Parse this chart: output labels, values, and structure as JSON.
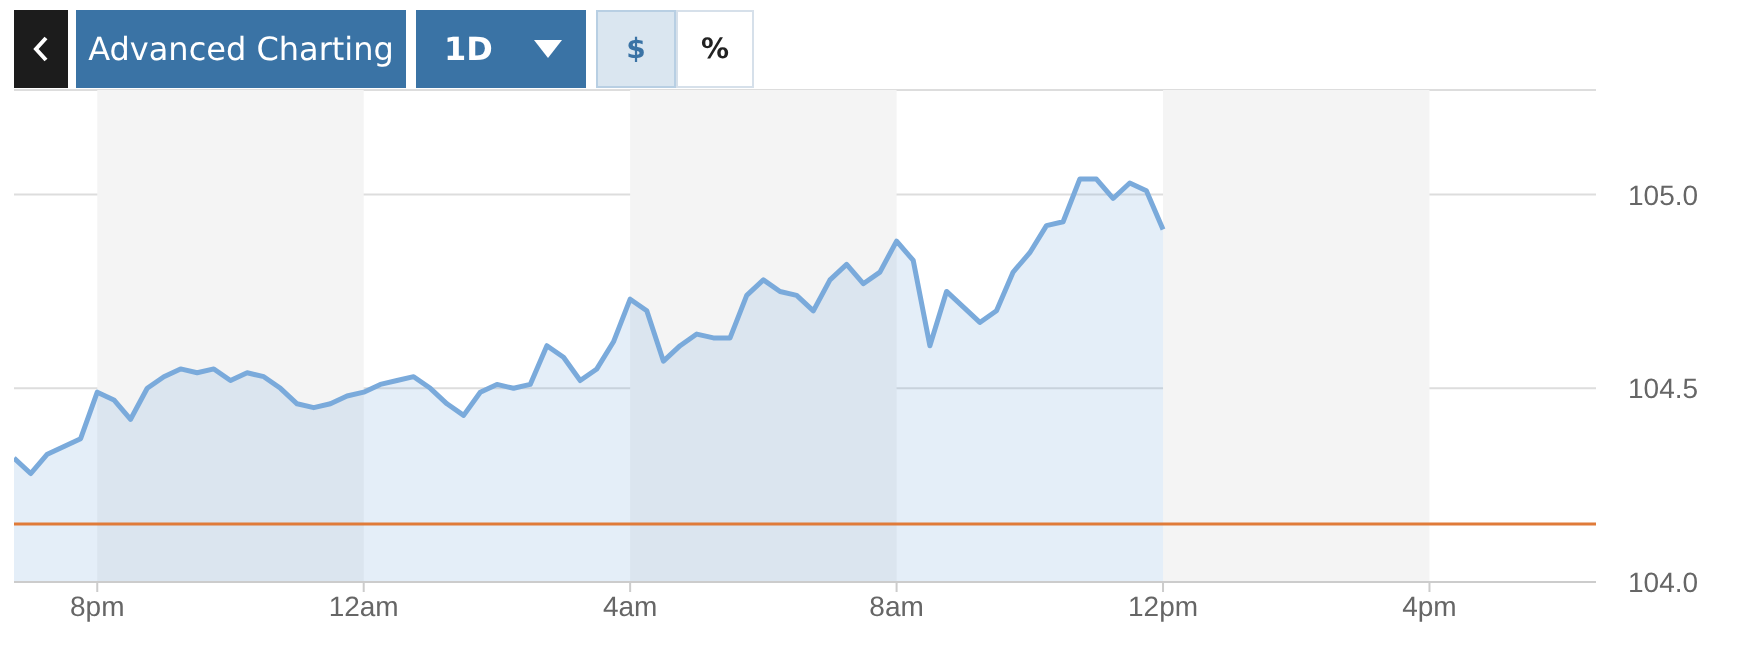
{
  "chart_data": {
    "type": "area",
    "annotations": [
      "Advanced Charting",
      "1D",
      "$",
      "%"
    ],
    "categories": [
      null,
      null,
      null,
      null,
      null,
      "8pm",
      null,
      null,
      null,
      null,
      null,
      null,
      null,
      null,
      null,
      null,
      null,
      null,
      null,
      null,
      null,
      "12am",
      null,
      null,
      null,
      null,
      null,
      null,
      null,
      null,
      null,
      null,
      null,
      null,
      null,
      null,
      null,
      "4am",
      null,
      null,
      null,
      null,
      null,
      null,
      null,
      null,
      null,
      null,
      null,
      null,
      null,
      null,
      null,
      "8am",
      null,
      null,
      null,
      null,
      null,
      null,
      null,
      null,
      null,
      null,
      null,
      null,
      null,
      null,
      null,
      "12pm",
      null,
      null,
      null,
      null,
      null,
      null,
      null,
      null,
      null,
      null,
      null,
      null,
      null,
      null,
      null,
      "4pm",
      null,
      null,
      null,
      null,
      null,
      null,
      null,
      null,
      null,
      null
    ],
    "series": [
      {
        "color": "#7aaadb",
        "values": [
          104.32,
          104.28,
          104.33,
          104.35,
          104.37,
          104.49,
          104.47,
          104.42,
          104.5,
          104.53,
          104.55,
          104.54,
          104.55,
          104.52,
          104.54,
          104.53,
          104.5,
          104.46,
          104.45,
          104.46,
          104.48,
          104.49,
          104.51,
          104.52,
          104.53,
          104.5,
          104.46,
          104.43,
          104.49,
          104.51,
          104.5,
          104.51,
          104.61,
          104.58,
          104.52,
          104.55,
          104.62,
          104.73,
          104.7,
          104.57,
          104.61,
          104.64,
          104.63,
          104.63,
          104.74,
          104.78,
          104.75,
          104.74,
          104.7,
          104.78,
          104.82,
          104.77,
          104.8,
          104.88,
          104.83,
          104.61,
          104.75,
          104.71,
          104.67,
          104.7,
          104.8,
          104.85,
          104.92,
          104.93,
          105.04,
          105.04,
          104.99,
          105.03,
          105.01,
          104.91,
          null,
          null,
          null,
          null,
          null,
          null,
          null,
          null,
          null,
          null,
          null,
          null,
          null,
          null,
          null,
          null,
          null,
          null,
          null,
          null,
          null,
          null,
          null,
          null,
          null,
          null
        ]
      }
    ],
    "ylim": [
      104.0,
      105.27
    ],
    "yticks": [
      {
        "value": 104,
        "label": "104.0"
      },
      {
        "value": 104.5,
        "label": "104.5"
      },
      {
        "value": 105,
        "label": "105.0"
      }
    ],
    "ref_lines": [
      {
        "axis": "y",
        "value": 104.15,
        "color": "#e07b39"
      }
    ],
    "bands": [
      {
        "axis": "x",
        "from": "8pm",
        "to": "12am",
        "color": "#f4f4f4"
      },
      {
        "axis": "x",
        "from": "4am",
        "to": "8am",
        "color": "#f4f4f4"
      },
      {
        "axis": "x",
        "from": "12pm",
        "to": "4pm",
        "color": "#f4f4f4"
      }
    ],
    "grid": "y",
    "marker": "none",
    "line_style": "solid"
  }
}
